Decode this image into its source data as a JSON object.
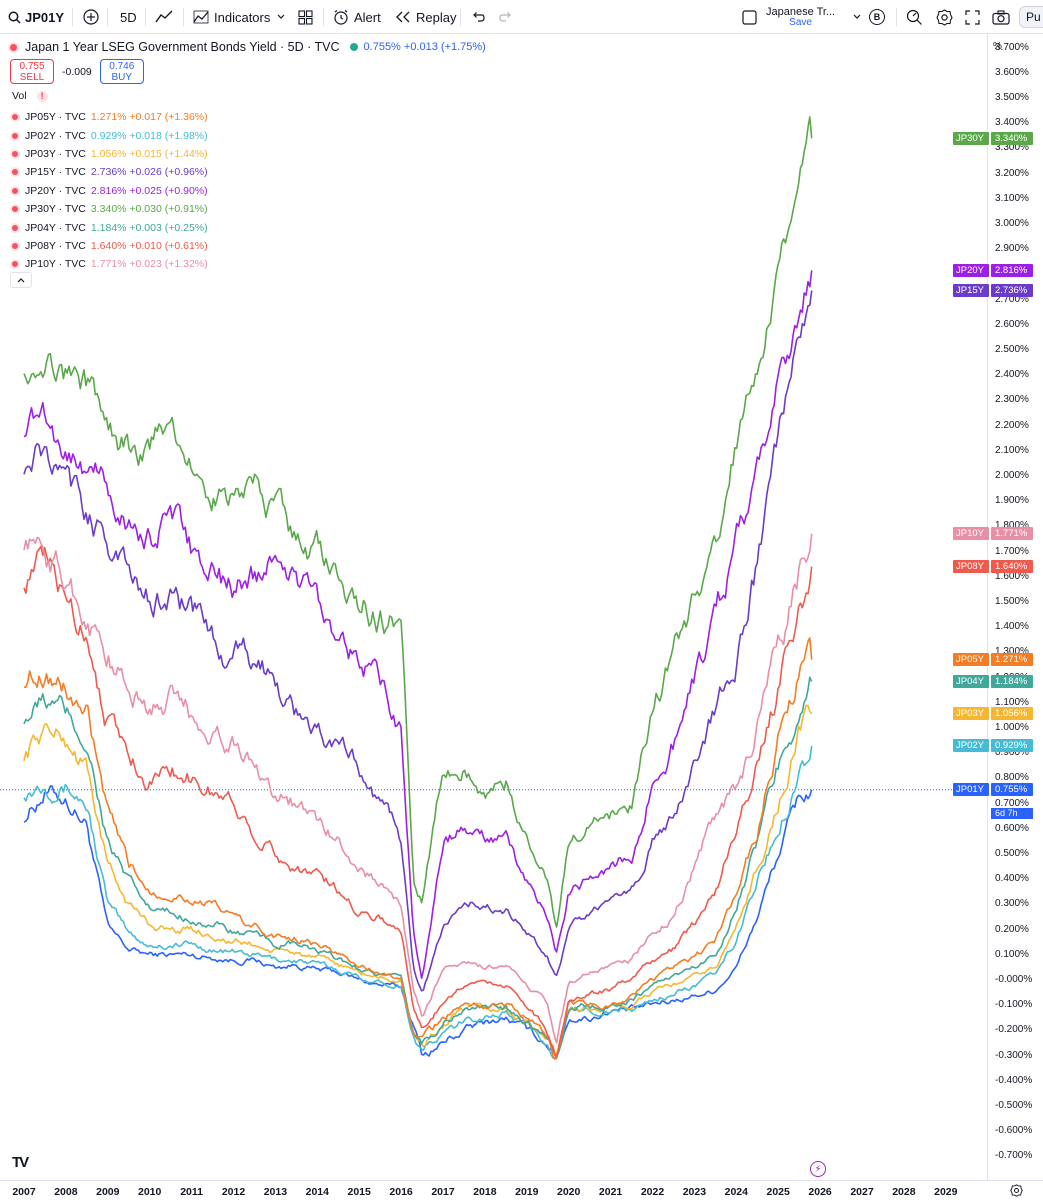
{
  "toolbar": {
    "symbol": "JP01Y",
    "interval": "5D",
    "indicators_label": "Indicators",
    "alert_label": "Alert",
    "replay_label": "Replay",
    "watchlist_title": "Japanese Tr...",
    "watchlist_sub": "Save",
    "badge": "B",
    "publish_label": "Pu"
  },
  "legend": {
    "title": "Japan 1 Year LSEG Government Bonds Yield · 5D · TVC",
    "price_change": "0.755% +0.013 (+1.75%)",
    "sell_price": "0.755",
    "sell_label": "SELL",
    "spread": "-0.009",
    "buy_price": "0.746",
    "buy_label": "BUY",
    "vol_label": "Vol",
    "vol_warning": "!",
    "series": [
      {
        "name": "JP05Y · TVC",
        "value": "1.271% +0.017 (+1.36%)",
        "color": "#f57c22"
      },
      {
        "name": "JP02Y · TVC",
        "value": "0.929% +0.018 (+1.98%)",
        "color": "#45bcd4"
      },
      {
        "name": "JP03Y · TVC",
        "value": "1.056% +0.015 (+1.44%)",
        "color": "#f5b731"
      },
      {
        "name": "JP15Y · TVC",
        "value": "2.736% +0.026 (+0.96%)",
        "color": "#6a3cc9"
      },
      {
        "name": "JP20Y · TVC",
        "value": "2.816% +0.025 (+0.90%)",
        "color": "#9c1fe6"
      },
      {
        "name": "JP30Y · TVC",
        "value": "3.340% +0.030 (+0.91%)",
        "color": "#5aa84a"
      },
      {
        "name": "JP04Y · TVC",
        "value": "1.184% +0.003 (+0.25%)",
        "color": "#3fa89a"
      },
      {
        "name": "JP08Y · TVC",
        "value": "1.640% +0.010 (+0.61%)",
        "color": "#ee5a4d"
      },
      {
        "name": "JP10Y · TVC",
        "value": "1.771% +0.023 (+1.32%)",
        "color": "#e88fa6"
      }
    ]
  },
  "price_axis": {
    "unit": "%",
    "ticks": [
      "3.700%",
      "3.600%",
      "3.500%",
      "3.400%",
      "3.300%",
      "3.200%",
      "3.100%",
      "3.000%",
      "2.900%",
      "2.800%",
      "2.700%",
      "2.600%",
      "2.500%",
      "2.400%",
      "2.300%",
      "2.200%",
      "2.100%",
      "2.000%",
      "1.900%",
      "1.800%",
      "1.700%",
      "1.600%",
      "1.500%",
      "1.400%",
      "1.300%",
      "1.200%",
      "1.100%",
      "1.000%",
      "0.900%",
      "0.800%",
      "0.700%",
      "0.600%",
      "0.500%",
      "0.400%",
      "0.300%",
      "0.200%",
      "0.100%",
      "-0.000%",
      "-0.100%",
      "-0.200%",
      "-0.300%",
      "-0.400%",
      "-0.500%",
      "-0.600%",
      "-0.700%"
    ],
    "countdown": "6d 7h"
  },
  "end_labels": [
    {
      "tag": "JP30Y",
      "value": "3.340%",
      "y": 3.34,
      "color": "#5aa84a"
    },
    {
      "tag": "JP20Y",
      "value": "2.816%",
      "y": 2.816,
      "color": "#9c1fe6"
    },
    {
      "tag": "JP15Y",
      "value": "2.736%",
      "y": 2.736,
      "color": "#6a3cc9"
    },
    {
      "tag": "JP10Y",
      "value": "1.771%",
      "y": 1.771,
      "color": "#e88fa6"
    },
    {
      "tag": "JP08Y",
      "value": "1.640%",
      "y": 1.64,
      "color": "#ee5a4d"
    },
    {
      "tag": "JP05Y",
      "value": "1.271%",
      "y": 1.271,
      "color": "#f57c22"
    },
    {
      "tag": "JP04Y",
      "value": "1.184%",
      "y": 1.184,
      "color": "#3fa89a"
    },
    {
      "tag": "JP03Y",
      "value": "1.056%",
      "y": 1.056,
      "color": "#f5b731"
    },
    {
      "tag": "JP02Y",
      "value": "0.929%",
      "y": 0.929,
      "color": "#45bcd4"
    },
    {
      "tag": "JP01Y",
      "value": "0.755%",
      "y": 0.755,
      "color": "#2962ff"
    }
  ],
  "time_axis": {
    "ticks": [
      "2007",
      "2008",
      "2009",
      "2010",
      "2011",
      "2012",
      "2013",
      "2014",
      "2015",
      "2016",
      "2017",
      "2018",
      "2019",
      "2020",
      "2021",
      "2022",
      "2023",
      "2024",
      "2025",
      "2026",
      "2027",
      "2028",
      "2029"
    ]
  },
  "chart_data": {
    "type": "line",
    "title": "Japan 1 Year LSEG Government Bonds Yield · 5D · TVC",
    "xlabel": "",
    "ylabel": "%",
    "xlim": [
      2007,
      2029.5
    ],
    "ylim": [
      -0.75,
      3.75
    ],
    "grid": false,
    "legend_position": "top-left",
    "current_price_line": 0.755,
    "x": [
      2007,
      2007.5,
      2008,
      2008.5,
      2009,
      2009.5,
      2010,
      2010.5,
      2011,
      2011.5,
      2012,
      2012.5,
      2013,
      2013.5,
      2014,
      2014.5,
      2015,
      2015.5,
      2016,
      2016.3,
      2016.5,
      2017,
      2017.5,
      2018,
      2018.5,
      2019,
      2019.5,
      2019.7,
      2020,
      2020.5,
      2021,
      2021.5,
      2022,
      2022.5,
      2023,
      2023.5,
      2024,
      2024.5,
      2025,
      2025.5,
      2025.8
    ],
    "series": [
      {
        "name": "JP01Y",
        "color": "#2962ff",
        "values": [
          0.65,
          0.75,
          0.72,
          0.62,
          0.2,
          0.12,
          0.1,
          0.1,
          0.1,
          0.09,
          0.08,
          0.08,
          0.05,
          0.06,
          0.04,
          0.03,
          0.0,
          -0.02,
          -0.03,
          -0.18,
          -0.3,
          -0.25,
          -0.2,
          -0.17,
          -0.15,
          -0.2,
          -0.25,
          -0.3,
          -0.15,
          -0.15,
          -0.12,
          -0.12,
          -0.1,
          -0.08,
          -0.06,
          -0.04,
          0.05,
          0.25,
          0.5,
          0.72,
          0.755
        ]
      },
      {
        "name": "JP02Y",
        "color": "#45bcd4",
        "values": [
          0.75,
          0.8,
          0.78,
          0.7,
          0.3,
          0.18,
          0.14,
          0.14,
          0.14,
          0.12,
          0.11,
          0.1,
          0.08,
          0.08,
          0.06,
          0.04,
          0.01,
          -0.01,
          -0.02,
          -0.22,
          -0.28,
          -0.22,
          -0.17,
          -0.14,
          -0.13,
          -0.18,
          -0.24,
          -0.3,
          -0.13,
          -0.12,
          -0.12,
          -0.12,
          -0.08,
          -0.05,
          -0.02,
          0.02,
          0.15,
          0.4,
          0.6,
          0.85,
          0.929
        ]
      },
      {
        "name": "JP03Y",
        "color": "#f5b731",
        "values": [
          0.9,
          1.0,
          0.95,
          0.85,
          0.45,
          0.3,
          0.22,
          0.2,
          0.2,
          0.18,
          0.15,
          0.14,
          0.11,
          0.11,
          0.08,
          0.06,
          0.03,
          0.01,
          -0.01,
          -0.22,
          -0.26,
          -0.18,
          -0.13,
          -0.12,
          -0.12,
          -0.17,
          -0.23,
          -0.3,
          -0.12,
          -0.11,
          -0.11,
          -0.1,
          -0.05,
          -0.02,
          0.01,
          0.05,
          0.2,
          0.45,
          0.7,
          0.98,
          1.056
        ]
      },
      {
        "name": "JP04Y",
        "color": "#3fa89a",
        "values": [
          1.05,
          1.1,
          1.05,
          0.95,
          0.55,
          0.38,
          0.28,
          0.26,
          0.25,
          0.22,
          0.19,
          0.17,
          0.14,
          0.14,
          0.11,
          0.08,
          0.05,
          0.02,
          0.0,
          -0.22,
          -0.25,
          -0.17,
          -0.12,
          -0.11,
          -0.11,
          -0.16,
          -0.22,
          -0.3,
          -0.11,
          -0.1,
          -0.1,
          -0.08,
          -0.02,
          0.02,
          0.05,
          0.1,
          0.3,
          0.55,
          0.85,
          1.1,
          1.184
        ]
      },
      {
        "name": "JP05Y",
        "color": "#f57c22",
        "values": [
          1.2,
          1.25,
          1.15,
          1.05,
          0.65,
          0.45,
          0.36,
          0.35,
          0.33,
          0.29,
          0.25,
          0.21,
          0.17,
          0.17,
          0.14,
          0.1,
          0.06,
          0.03,
          0.0,
          -0.22,
          -0.24,
          -0.15,
          -0.1,
          -0.1,
          -0.1,
          -0.15,
          -0.22,
          -0.33,
          -0.1,
          -0.1,
          -0.1,
          -0.05,
          0.0,
          0.05,
          0.08,
          0.15,
          0.35,
          0.6,
          0.95,
          1.2,
          1.271
        ]
      },
      {
        "name": "JP08Y",
        "color": "#ee5a4d",
        "values": [
          1.6,
          1.65,
          1.5,
          1.4,
          1.05,
          0.9,
          0.8,
          0.85,
          0.8,
          0.75,
          0.7,
          0.6,
          0.5,
          0.45,
          0.42,
          0.35,
          0.28,
          0.25,
          0.2,
          -0.12,
          -0.2,
          -0.08,
          -0.02,
          -0.01,
          -0.02,
          -0.1,
          -0.2,
          -0.3,
          -0.07,
          -0.05,
          -0.04,
          0.01,
          0.08,
          0.12,
          0.22,
          0.35,
          0.6,
          0.85,
          1.15,
          1.5,
          1.64
        ]
      },
      {
        "name": "JP10Y",
        "color": "#e88fa6",
        "values": [
          1.75,
          1.7,
          1.58,
          1.45,
          1.3,
          1.15,
          1.08,
          1.12,
          1.05,
          1.0,
          0.95,
          0.85,
          0.75,
          0.7,
          0.62,
          0.55,
          0.45,
          0.38,
          0.3,
          -0.05,
          -0.15,
          0.05,
          0.06,
          0.05,
          0.05,
          -0.02,
          -0.1,
          -0.25,
          0.0,
          0.03,
          0.05,
          0.08,
          0.2,
          0.25,
          0.45,
          0.65,
          0.75,
          1.0,
          1.3,
          1.6,
          1.771
        ]
      },
      {
        "name": "JP15Y",
        "color": "#6a3cc9",
        "values": [
          2.05,
          2.1,
          1.95,
          1.85,
          1.75,
          1.6,
          1.5,
          1.55,
          1.45,
          1.35,
          1.3,
          1.25,
          1.2,
          1.05,
          1.0,
          0.9,
          0.85,
          0.7,
          0.55,
          0.05,
          -0.05,
          0.2,
          0.3,
          0.3,
          0.28,
          0.2,
          0.1,
          0.0,
          0.2,
          0.25,
          0.3,
          0.35,
          0.55,
          0.65,
          0.85,
          1.1,
          1.3,
          1.65,
          2.1,
          2.55,
          2.736
        ]
      },
      {
        "name": "JP20Y",
        "color": "#9c1fe6",
        "values": [
          2.2,
          2.25,
          2.1,
          2.05,
          1.95,
          1.8,
          1.75,
          1.85,
          1.7,
          1.6,
          1.55,
          1.6,
          1.7,
          1.6,
          1.5,
          1.4,
          1.3,
          1.15,
          1.0,
          0.2,
          0.0,
          0.55,
          0.6,
          0.55,
          0.55,
          0.38,
          0.25,
          0.1,
          0.35,
          0.4,
          0.45,
          0.5,
          0.8,
          0.95,
          1.2,
          1.4,
          1.7,
          2.0,
          2.35,
          2.65,
          2.816
        ]
      },
      {
        "name": "JP30Y",
        "color": "#5aa84a",
        "values": [
          2.45,
          2.5,
          2.4,
          2.35,
          2.2,
          2.1,
          2.1,
          2.2,
          2.05,
          1.95,
          1.9,
          1.95,
          1.85,
          1.75,
          1.7,
          1.6,
          1.5,
          1.45,
          1.4,
          0.35,
          0.3,
          0.85,
          0.85,
          0.75,
          0.8,
          0.55,
          0.4,
          0.2,
          0.55,
          0.6,
          0.65,
          0.7,
          1.1,
          1.3,
          1.5,
          1.65,
          2.1,
          2.4,
          2.8,
          3.1,
          3.34
        ]
      }
    ]
  }
}
